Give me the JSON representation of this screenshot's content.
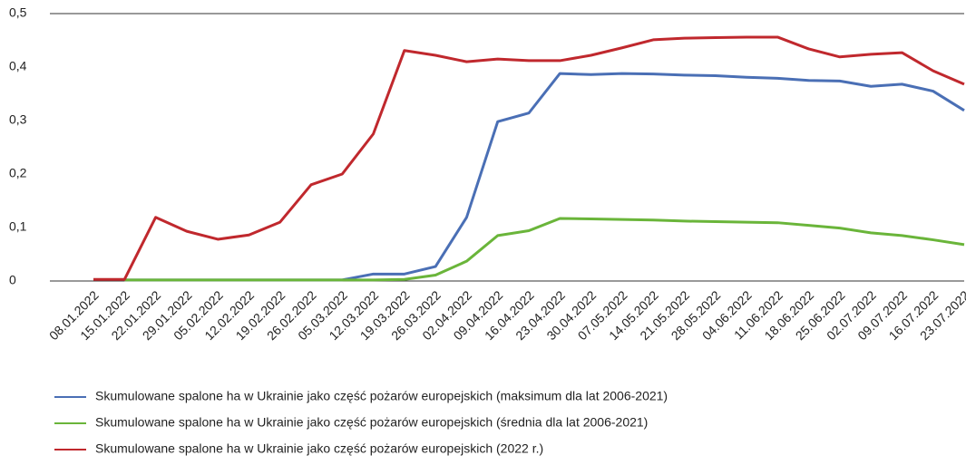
{
  "chart_data": {
    "type": "line",
    "categories": [
      "08.01.2022",
      "15.01.2022",
      "22.01.2022",
      "29.01.2022",
      "05.02.2022",
      "12.02.2022",
      "19.02.2022",
      "26.02.2022",
      "05.03.2022",
      "12.03.2022",
      "19.03.2022",
      "26.03.2022",
      "02.04.2022",
      "09.04.2022",
      "16.04.2022",
      "23.04.2022",
      "30.04.2022",
      "07.05.2022",
      "14.05.2022",
      "21.05.2022",
      "28.05.2022",
      "04.06.2022",
      "11.06.2022",
      "18.06.2022",
      "25.06.2022",
      "02.07.2022",
      "09.07.2022",
      "16.07.2022",
      "23.07.2022"
    ],
    "series": [
      {
        "name": "Skumulowane spalone ha w Ukrainie jako część pożarów europejskich (maksimum dla lat 2006-2021)",
        "color": "#4a6fb5",
        "values": [
          null,
          0.002,
          0.002,
          0.002,
          0.002,
          0.002,
          0.002,
          0.002,
          0.002,
          0.013,
          0.013,
          0.027,
          0.119,
          0.298,
          0.314,
          0.388,
          0.386,
          0.388,
          0.387,
          0.385,
          0.384,
          0.381,
          0.379,
          0.375,
          0.374,
          0.364,
          0.368,
          0.355,
          0.319
        ]
      },
      {
        "name": "Skumulowane spalone ha w Ukrainie jako część pożarów europejskich (średnia dla lat 2006-2021)",
        "color": "#6ab53a",
        "values": [
          null,
          0.002,
          0.002,
          0.002,
          0.002,
          0.002,
          0.002,
          0.002,
          0.002,
          0.002,
          0.003,
          0.011,
          0.037,
          0.085,
          0.094,
          0.117,
          0.116,
          0.115,
          0.114,
          0.112,
          0.111,
          0.11,
          0.109,
          0.104,
          0.099,
          0.09,
          0.085,
          0.077,
          0.068
        ]
      },
      {
        "name": "Skumulowane spalone ha w Ukrainie jako część pożarów europejskich (2022 r.)",
        "color": "#c0282d",
        "values": [
          0.003,
          0.003,
          0.119,
          0.093,
          0.078,
          0.086,
          0.11,
          0.18,
          0.2,
          0.275,
          0.431,
          0.422,
          0.41,
          0.415,
          0.412,
          0.412,
          0.422,
          0.436,
          0.451,
          0.454,
          0.455,
          0.456,
          0.456,
          0.434,
          0.419,
          0.424,
          0.427,
          0.393,
          0.368
        ]
      }
    ],
    "ylim": [
      0,
      0.5
    ],
    "yticks": [
      0,
      {
        "value": 0.1,
        "label": "0,1"
      },
      {
        "value": 0.2,
        "label": "0,2"
      },
      {
        "value": 0.3,
        "label": "0,3"
      },
      {
        "value": 0.4,
        "label": "0,4"
      },
      {
        "value": 0.5,
        "label": "0,5"
      }
    ],
    "grid": false,
    "legend": "bottom"
  }
}
